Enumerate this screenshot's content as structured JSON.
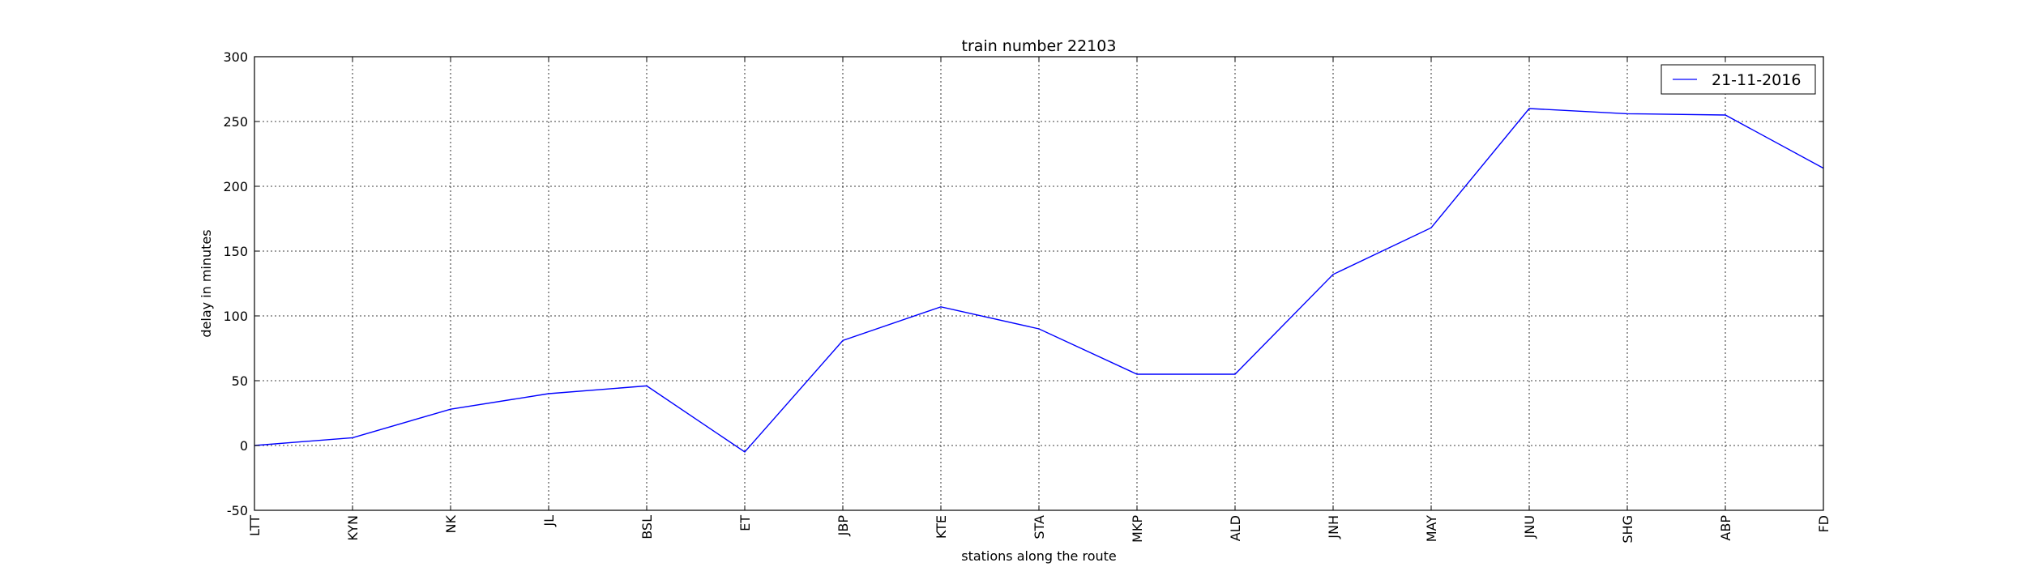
{
  "chart_data": {
    "type": "line",
    "title": "train number 22103",
    "xlabel": "stations along the route",
    "ylabel": "delay in minutes",
    "categories": [
      "LTT",
      "KYN",
      "NK",
      "JL",
      "BSL",
      "ET",
      "JBP",
      "KTE",
      "STA",
      "MKP",
      "ALD",
      "JNH",
      "MAY",
      "JNU",
      "SHG",
      "ABP",
      "FD"
    ],
    "series": [
      {
        "name": "21-11-2016",
        "color": "#0000ff",
        "values": [
          0,
          6,
          28,
          40,
          46,
          -5,
          81,
          107,
          90,
          55,
          55,
          132,
          168,
          260,
          256,
          255,
          214
        ]
      }
    ],
    "ylim": [
      -50,
      300
    ],
    "yticks": [
      -50,
      0,
      50,
      100,
      150,
      200,
      250,
      300
    ],
    "grid": true,
    "legend_position": "top-right"
  }
}
